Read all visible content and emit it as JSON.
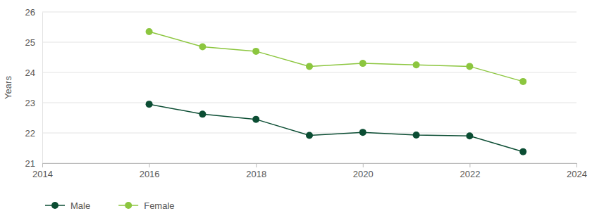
{
  "chart_data": {
    "type": "line",
    "y_label": "Years",
    "x": [
      2016,
      2017,
      2018,
      2019,
      2020,
      2021,
      2022,
      2023
    ],
    "series": [
      {
        "name": "Male",
        "color": "#0b4d33",
        "values": [
          22.95,
          22.62,
          22.45,
          21.92,
          22.02,
          21.93,
          21.9,
          21.38
        ],
        "marker": "circle"
      },
      {
        "name": "Female",
        "color": "#8cc63f",
        "values": [
          25.35,
          24.85,
          24.7,
          24.2,
          24.3,
          24.25,
          24.2,
          23.7
        ],
        "marker": "circle"
      }
    ],
    "xlim": [
      2014,
      2024
    ],
    "xticks": [
      2014,
      2016,
      2018,
      2020,
      2022,
      2024
    ],
    "ylim": [
      21,
      26
    ],
    "yticks": [
      21,
      22,
      23,
      24,
      25,
      26
    ],
    "grid": true,
    "legend": "bottom-left"
  }
}
